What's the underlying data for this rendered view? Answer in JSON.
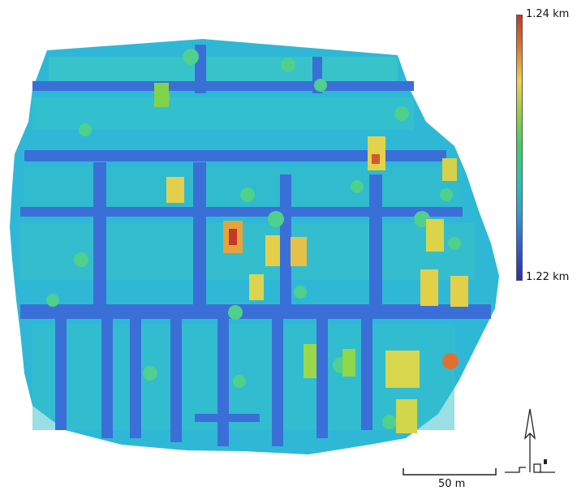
{
  "legend": {
    "max_label": "1.24 km",
    "min_label": "1.22 km",
    "colors": [
      "#c0392b",
      "#e07a2f",
      "#f0d24a",
      "#8fd13f",
      "#3ecf6a",
      "#24c8b0",
      "#2a9fd8",
      "#2f5fd0",
      "#2a2fb0"
    ]
  },
  "scale_bar": {
    "label": "50 m"
  },
  "map": {
    "street_color": "#3b6fd8",
    "block_color": "#2fb8d6",
    "block_color_alt": "#3cc7c7",
    "tree_color": "#4fd08a",
    "building_low": "#7fd34a",
    "building_mid": "#e8d24c",
    "building_high": "#e07030",
    "peak": "#c43a2a"
  },
  "north_arrow": {
    "icon": "north-arrow-icon"
  }
}
